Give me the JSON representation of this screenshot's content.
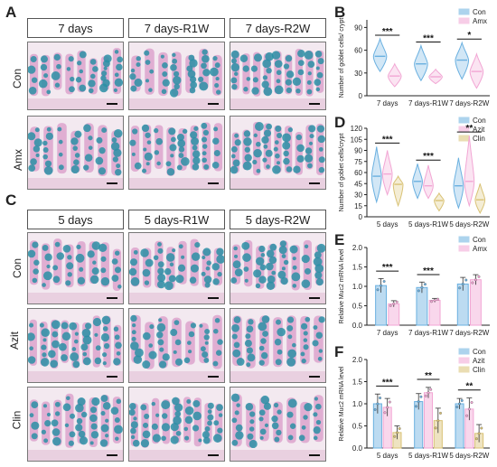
{
  "panels": {
    "A": {
      "letter": "A",
      "cols": [
        "7 days",
        "7 days-R1W",
        "7 days-R2W"
      ],
      "rows": [
        "Con",
        "Amx"
      ]
    },
    "C": {
      "letter": "C",
      "cols": [
        "5 days",
        "5 days-R1W",
        "5 days-R2W"
      ],
      "rows": [
        "Con",
        "Azit",
        "Clin"
      ]
    },
    "B": {
      "letter": "B"
    },
    "D": {
      "letter": "D"
    },
    "E": {
      "letter": "E"
    },
    "F": {
      "letter": "F"
    }
  },
  "colors": {
    "con": "#6ab0e0",
    "amx": "#f2a6d4",
    "azit": "#f2a6d4",
    "clin": "#d9c275",
    "stain_blue": "#2a8fa6",
    "stain_pink": "#d99ac8"
  },
  "chart_data": [
    {
      "id": "B",
      "type": "violin",
      "ylabel": "Number of goblet cells/ crypt",
      "yticks": [
        0,
        30,
        60,
        90
      ],
      "ylim": [
        0,
        100
      ],
      "categories": [
        "7 days",
        "7 days-R1W",
        "7 days-R2W"
      ],
      "legend": [
        "Con",
        "Amx"
      ],
      "legend_position": "top-right",
      "series": [
        {
          "name": "Con",
          "medians": [
            52,
            42,
            47
          ],
          "ranges": [
            [
              32,
              75
            ],
            [
              20,
              66
            ],
            [
              22,
              70
            ]
          ]
        },
        {
          "name": "Amx",
          "medians": [
            26,
            25,
            32
          ],
          "ranges": [
            [
              12,
              42
            ],
            [
              16,
              35
            ],
            [
              10,
              55
            ]
          ]
        }
      ],
      "significance": [
        "***",
        "***",
        "*"
      ]
    },
    {
      "id": "D",
      "type": "violin",
      "ylabel": "Number of goblet cells/crypt",
      "yticks": [
        0,
        15,
        30,
        45,
        60,
        75,
        90,
        105,
        120
      ],
      "ylim": [
        0,
        120
      ],
      "categories": [
        "5 days",
        "5 days-R1W",
        "5 days-R2W"
      ],
      "legend": [
        "Con",
        "Azit",
        "Clin"
      ],
      "legend_position": "top-right",
      "series": [
        {
          "name": "Con",
          "medians": [
            55,
            48,
            42
          ],
          "ranges": [
            [
              20,
              95
            ],
            [
              25,
              72
            ],
            [
              12,
              80
            ]
          ]
        },
        {
          "name": "Azit",
          "medians": [
            58,
            42,
            48
          ],
          "ranges": [
            [
              30,
              90
            ],
            [
              25,
              70
            ],
            [
              15,
              110
            ]
          ]
        },
        {
          "name": "Clin",
          "medians": [
            44,
            22,
            23
          ],
          "ranges": [
            [
              15,
              55
            ],
            [
              8,
              32
            ],
            [
              5,
              45
            ]
          ]
        }
      ],
      "significance": [
        "***",
        "***",
        "**"
      ]
    },
    {
      "id": "E",
      "type": "bar",
      "ylabel": "Relative Muc2 mRNA level",
      "yticks": [
        0.0,
        0.5,
        1.0,
        1.5,
        2.0
      ],
      "ylim": [
        0,
        2.0
      ],
      "categories": [
        "7 days",
        "7 days-R1W",
        "7 days-R2W"
      ],
      "legend": [
        "Con",
        "Amx"
      ],
      "legend_position": "top-right",
      "series": [
        {
          "name": "Con",
          "values": [
            1.02,
            0.97,
            1.06
          ],
          "errors": [
            0.18,
            0.14,
            0.17
          ]
        },
        {
          "name": "Amx",
          "values": [
            0.55,
            0.64,
            1.17
          ],
          "errors": [
            0.08,
            0.05,
            0.13
          ]
        }
      ],
      "significance": [
        "***",
        "***",
        ""
      ]
    },
    {
      "id": "F",
      "type": "bar",
      "ylabel": "Relative Muc2 mRNA level",
      "yticks": [
        0.0,
        0.5,
        1.0,
        1.5,
        2.0
      ],
      "ylim": [
        0,
        2.0
      ],
      "categories": [
        "5 days",
        "5 days-R1W",
        "5 days-R2W"
      ],
      "legend": [
        "Con",
        "Azit",
        "Clin"
      ],
      "legend_position": "top-right",
      "series": [
        {
          "name": "Con",
          "values": [
            1.0,
            1.05,
            1.0
          ],
          "errors": [
            0.22,
            0.18,
            0.12
          ]
        },
        {
          "name": "Azit",
          "values": [
            0.92,
            1.25,
            0.88
          ],
          "errors": [
            0.2,
            0.12,
            0.25
          ]
        },
        {
          "name": "Clin",
          "values": [
            0.35,
            0.62,
            0.33
          ],
          "errors": [
            0.15,
            0.28,
            0.2
          ]
        }
      ],
      "significance": [
        "***",
        "**",
        "**"
      ]
    }
  ]
}
